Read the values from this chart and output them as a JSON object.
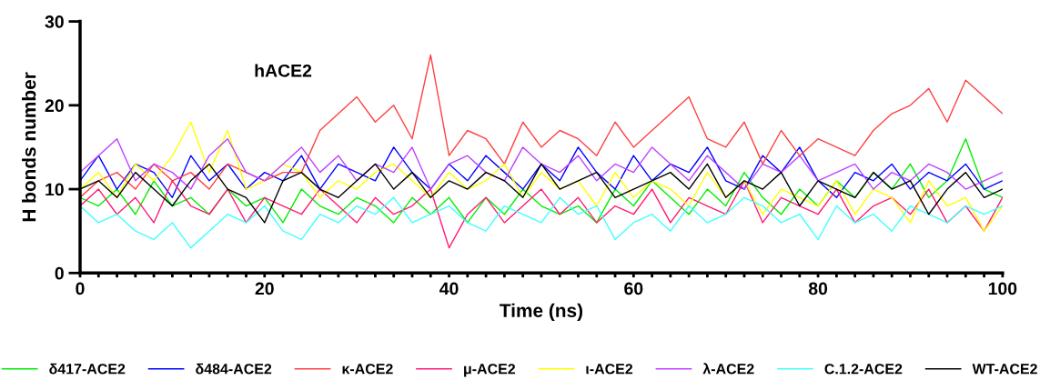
{
  "chart_data": {
    "type": "line",
    "title": "hACE2",
    "xlabel": "Time (ns)",
    "ylabel": "H bonds number",
    "x": [
      0,
      2,
      4,
      6,
      8,
      10,
      12,
      14,
      16,
      18,
      20,
      22,
      24,
      26,
      28,
      30,
      32,
      34,
      36,
      38,
      40,
      42,
      44,
      46,
      48,
      50,
      52,
      54,
      56,
      58,
      60,
      62,
      64,
      66,
      68,
      70,
      72,
      74,
      76,
      78,
      80,
      82,
      84,
      86,
      88,
      90,
      92,
      94,
      96,
      98,
      100
    ],
    "series": [
      {
        "name": "δ417-ACE2",
        "color": "#00ee00",
        "values": [
          9,
          8,
          10,
          7,
          11,
          8,
          9,
          7,
          10,
          8,
          9,
          6,
          10,
          8,
          7,
          9,
          8,
          6,
          9,
          7,
          9,
          6,
          9,
          7,
          10,
          8,
          7,
          8,
          6,
          10,
          8,
          11,
          9,
          7,
          10,
          8,
          12,
          9,
          7,
          10,
          8,
          11,
          9,
          12,
          10,
          13,
          9,
          11,
          16,
          10,
          9
        ]
      },
      {
        "name": "δ484-ACE2",
        "color": "#0000ff",
        "values": [
          11,
          14,
          10,
          13,
          12,
          9,
          14,
          11,
          13,
          10,
          12,
          11,
          14,
          10,
          13,
          12,
          11,
          15,
          12,
          10,
          13,
          11,
          14,
          12,
          10,
          13,
          11,
          15,
          12,
          10,
          14,
          11,
          13,
          12,
          15,
          11,
          10,
          14,
          12,
          15,
          11,
          9,
          12,
          11,
          13,
          10,
          12,
          11,
          13,
          10,
          11
        ]
      },
      {
        "name": "κ-ACE2",
        "color": "#ff4040",
        "values": [
          9,
          11,
          12,
          10,
          13,
          11,
          12,
          10,
          13,
          12,
          11,
          12,
          12,
          17,
          19,
          21,
          18,
          20,
          16,
          26,
          14,
          17,
          16,
          13,
          18,
          15,
          17,
          16,
          14,
          18,
          15,
          17,
          19,
          21,
          16,
          15,
          18,
          13,
          17,
          14,
          16,
          15,
          14,
          17,
          19,
          20,
          22,
          18,
          23,
          21,
          19
        ]
      },
      {
        "name": "μ-ACE2",
        "color": "#ff1a75",
        "values": [
          8,
          10,
          7,
          9,
          6,
          11,
          8,
          7,
          10,
          6,
          9,
          8,
          7,
          10,
          8,
          6,
          9,
          7,
          8,
          10,
          3,
          7,
          9,
          6,
          8,
          10,
          7,
          9,
          6,
          8,
          7,
          10,
          6,
          9,
          8,
          7,
          11,
          6,
          9,
          8,
          7,
          10,
          6,
          8,
          9,
          7,
          10,
          6,
          8,
          5,
          9
        ]
      },
      {
        "name": "ι-ACE2",
        "color": "#ffff00",
        "values": [
          10,
          12,
          9,
          13,
          11,
          14,
          18,
          12,
          17,
          10,
          11,
          13,
          12,
          9,
          11,
          10,
          12,
          13,
          11,
          9,
          12,
          10,
          11,
          13,
          9,
          12,
          10,
          11,
          8,
          12,
          9,
          11,
          10,
          8,
          12,
          9,
          11,
          7,
          10,
          9,
          8,
          11,
          7,
          10,
          9,
          6,
          11,
          8,
          9,
          5,
          8
        ]
      },
      {
        "name": "λ-ACE2",
        "color": "#bf40ff",
        "values": [
          12,
          14,
          16,
          11,
          13,
          12,
          10,
          14,
          16,
          12,
          11,
          13,
          15,
          12,
          14,
          11,
          13,
          12,
          15,
          10,
          13,
          14,
          12,
          11,
          15,
          13,
          12,
          14,
          11,
          13,
          12,
          15,
          13,
          11,
          14,
          12,
          10,
          13,
          12,
          14,
          11,
          12,
          13,
          10,
          12,
          11,
          13,
          12,
          10,
          11,
          12
        ]
      },
      {
        "name": "C.1.2-ACE2",
        "color": "#40ffff",
        "values": [
          8,
          6,
          7,
          5,
          4,
          6,
          3,
          5,
          7,
          6,
          8,
          5,
          4,
          7,
          6,
          8,
          7,
          9,
          6,
          7,
          8,
          6,
          5,
          8,
          7,
          6,
          9,
          7,
          8,
          4,
          6,
          7,
          5,
          8,
          6,
          7,
          9,
          8,
          6,
          7,
          4,
          8,
          6,
          7,
          5,
          8,
          7,
          6,
          8,
          7,
          8
        ]
      },
      {
        "name": "WT-ACE2",
        "color": "#000000",
        "values": [
          10,
          11,
          9,
          12,
          10,
          8,
          11,
          13,
          10,
          9,
          6,
          11,
          12,
          10,
          9,
          11,
          13,
          10,
          12,
          9,
          11,
          10,
          12,
          11,
          9,
          13,
          10,
          11,
          12,
          9,
          10,
          11,
          12,
          10,
          13,
          9,
          11,
          10,
          12,
          8,
          11,
          10,
          9,
          12,
          10,
          11,
          7,
          10,
          12,
          9,
          10
        ]
      }
    ],
    "xlim": [
      0,
      100
    ],
    "ylim": [
      0,
      30
    ],
    "xticks": [
      0,
      {
        "value": 2,
        "label": null
      },
      {
        "value": 4,
        "label": null
      },
      {
        "value": 6,
        "label": null
      },
      {
        "value": 8,
        "label": null
      },
      {
        "value": 10,
        "label": null
      },
      {
        "value": 12,
        "label": null
      },
      {
        "value": 14,
        "label": null
      },
      {
        "value": 16,
        "label": null
      },
      {
        "value": 18,
        "label": null
      },
      20,
      {
        "value": 22,
        "label": null
      },
      {
        "value": 24,
        "label": null
      },
      {
        "value": 26,
        "label": null
      },
      {
        "value": 28,
        "label": null
      },
      {
        "value": 30,
        "label": null
      },
      {
        "value": 32,
        "label": null
      },
      {
        "value": 34,
        "label": null
      },
      {
        "value": 36,
        "label": null
      },
      {
        "value": 38,
        "label": null
      },
      40,
      {
        "value": 42,
        "label": null
      },
      {
        "value": 44,
        "label": null
      },
      {
        "value": 46,
        "label": null
      },
      {
        "value": 48,
        "label": null
      },
      {
        "value": 50,
        "label": null
      },
      {
        "value": 52,
        "label": null
      },
      {
        "value": 54,
        "label": null
      },
      {
        "value": 56,
        "label": null
      },
      {
        "value": 58,
        "label": null
      },
      60,
      {
        "value": 62,
        "label": null
      },
      {
        "value": 64,
        "label": null
      },
      {
        "value": 66,
        "label": null
      },
      {
        "value": 68,
        "label": null
      },
      {
        "value": 70,
        "label": null
      },
      {
        "value": 72,
        "label": null
      },
      {
        "value": 74,
        "label": null
      },
      {
        "value": 76,
        "label": null
      },
      {
        "value": 78,
        "label": null
      },
      80,
      {
        "value": 82,
        "label": null
      },
      {
        "value": 84,
        "label": null
      },
      {
        "value": 86,
        "label": null
      },
      {
        "value": 88,
        "label": null
      },
      {
        "value": 90,
        "label": null
      },
      {
        "value": 92,
        "label": null
      },
      {
        "value": 94,
        "label": null
      },
      {
        "value": 96,
        "label": null
      },
      {
        "value": 98,
        "label": null
      },
      100
    ],
    "yticks": [
      0,
      10,
      20,
      30
    ],
    "grid": false,
    "legend": "bottom",
    "marker": "none",
    "line_style": "solid"
  }
}
